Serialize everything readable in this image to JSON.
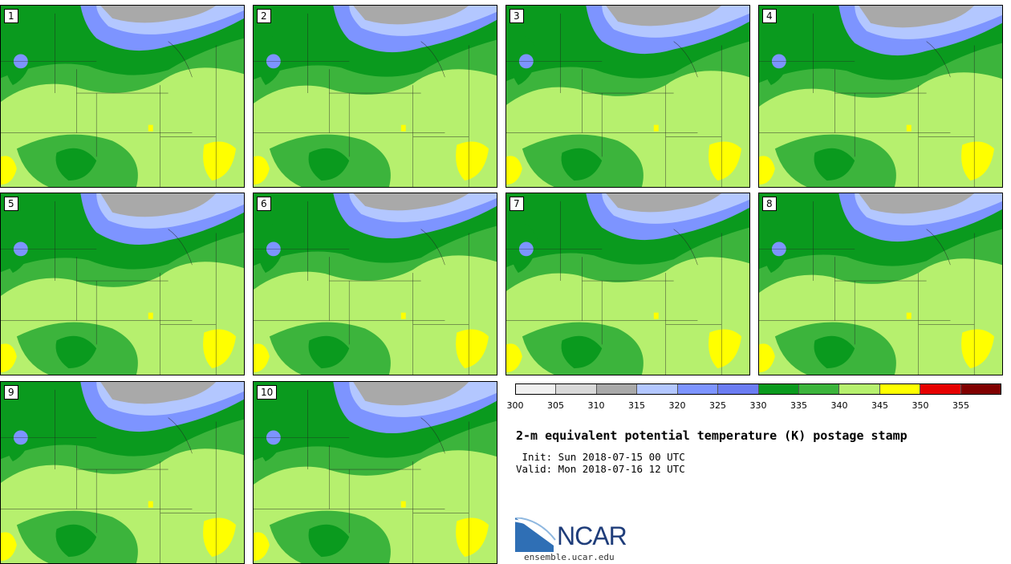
{
  "panels": [
    {
      "label": "1"
    },
    {
      "label": "2"
    },
    {
      "label": "3"
    },
    {
      "label": "4"
    },
    {
      "label": "5"
    },
    {
      "label": "6"
    },
    {
      "label": "7"
    },
    {
      "label": "8"
    },
    {
      "label": "9"
    },
    {
      "label": "10"
    }
  ],
  "colorbar": {
    "colors": [
      "#f0f0f0",
      "#d8d8d8",
      "#a9a9a9",
      "#b3c7ff",
      "#7d94ff",
      "#6b7cf2",
      "#0a9a1e",
      "#3cb43c",
      "#b6f06e",
      "#ffff00",
      "#e60000",
      "#800000"
    ],
    "ticks": [
      "300",
      "305",
      "310",
      "315",
      "320",
      "325",
      "330",
      "335",
      "340",
      "345",
      "350",
      "355"
    ]
  },
  "title": "2-m equivalent potential temperature (K) postage stamp",
  "init": " Init: Sun 2018-07-15 00 UTC",
  "valid": "Valid: Mon 2018-07-16 12 UTC",
  "logo": "NCAR",
  "site": "ensemble.ucar.edu"
}
